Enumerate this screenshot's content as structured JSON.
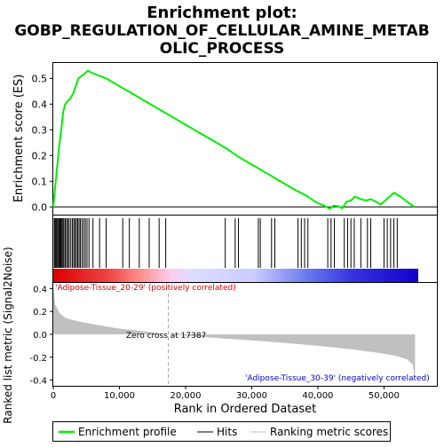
{
  "chart_data": {
    "type": "line",
    "title_lines": [
      "Enrichment plot:",
      "GOBP_REGULATION_OF_CELLULAR_AMINE_METAB",
      "OLIC_PROCESS"
    ],
    "top_panel": {
      "ylabel": "Enrichment score (ES)",
      "ylim": [
        -0.03,
        0.56
      ],
      "yticks": [
        0.0,
        0.1,
        0.2,
        0.3,
        0.4,
        0.5
      ],
      "ytick_labels": [
        "0.0",
        "0.1",
        "0.2",
        "0.3",
        "0.4",
        "0.5"
      ],
      "series": [
        {
          "name": "Enrichment profile",
          "color": "#00ee00",
          "x": [
            0,
            300,
            600,
            900,
            1200,
            1500,
            1800,
            2100,
            2500,
            3000,
            3400,
            3800,
            4300,
            4800,
            5200,
            6000,
            7000,
            8000,
            10000,
            12000,
            14000,
            16000,
            18000,
            20000,
            22000,
            24000,
            26000,
            28000,
            30000,
            31000,
            32000,
            33000,
            34000,
            35000,
            36000,
            37000,
            37800,
            38500,
            39000,
            40000,
            41000,
            41800,
            42300,
            43000,
            43700,
            44300,
            45000,
            45600,
            46500,
            47300,
            48000,
            48800,
            49500,
            50200,
            50800,
            51500,
            52500,
            53500,
            54600
          ],
          "y": [
            0.0,
            0.08,
            0.16,
            0.24,
            0.3,
            0.37,
            0.4,
            0.41,
            0.42,
            0.44,
            0.47,
            0.5,
            0.51,
            0.52,
            0.53,
            0.52,
            0.51,
            0.5,
            0.47,
            0.44,
            0.41,
            0.38,
            0.35,
            0.32,
            0.29,
            0.26,
            0.23,
            0.195,
            0.165,
            0.15,
            0.135,
            0.12,
            0.105,
            0.09,
            0.075,
            0.06,
            0.05,
            0.04,
            0.03,
            0.015,
            0.005,
            -0.008,
            0.005,
            0.003,
            -0.005,
            0.02,
            0.025,
            0.04,
            0.03,
            0.025,
            0.03,
            0.02,
            0.01,
            0.025,
            0.04,
            0.055,
            0.04,
            0.02,
            0.0
          ]
        }
      ]
    },
    "hits_panel": {
      "hit_positions": [
        150,
        280,
        420,
        560,
        700,
        860,
        1000,
        1150,
        1300,
        1450,
        1600,
        1800,
        2000,
        2200,
        2400,
        2650,
        2900,
        3100,
        3300,
        3500,
        3700,
        3900,
        4100,
        4350,
        4600,
        4850,
        5100,
        5400,
        6000,
        7000,
        8000,
        10500,
        11500,
        13000,
        14500,
        16000,
        17000,
        26000,
        27500,
        28000,
        31000,
        31300,
        33000,
        33500,
        37000,
        37500,
        38000,
        38500,
        41500,
        42000,
        42500,
        44000,
        44500,
        45000,
        45500,
        46500,
        47500,
        48000,
        50000,
        50500,
        51000,
        51500,
        52000
      ]
    },
    "bottom_panel": {
      "ylabel": "Ranked list metric (Signal2Noise)",
      "xlabel": "Rank in Ordered Dataset",
      "xlim": [
        0,
        58000
      ],
      "ylim": [
        -0.45,
        0.45
      ],
      "yticks": [
        -0.4,
        -0.2,
        0.0,
        0.2,
        0.4
      ],
      "ytick_labels": [
        "-0.4",
        "-0.2",
        "0.0",
        "0.2",
        "0.4"
      ],
      "xticks": [
        0,
        10000,
        20000,
        30000,
        40000,
        50000
      ],
      "xtick_labels": [
        "0",
        "10,000",
        "20,000",
        "30,000",
        "40,000",
        "50,000"
      ],
      "metric_curve": {
        "x": [
          0,
          300,
          1000,
          2000,
          4000,
          7000,
          10000,
          14000,
          17387,
          22000,
          28000,
          34000,
          40000,
          45000,
          49000,
          52000,
          53500,
          54300,
          54700
        ],
        "y": [
          0.42,
          0.26,
          0.18,
          0.14,
          0.11,
          0.08,
          0.05,
          0.025,
          0.0,
          -0.02,
          -0.045,
          -0.07,
          -0.1,
          -0.13,
          -0.16,
          -0.19,
          -0.22,
          -0.26,
          -0.38
        ]
      },
      "zero_cross_label": "Zero cross at 17387",
      "zero_cross_x": 17387,
      "positive_label": "'Adipose-Tissue_20-29' (positively correlated)",
      "negative_label": "'Adipose-Tissue_30-39' (negatively correlated)",
      "positive_label_color": "#dd0000",
      "negative_label_color": "#0000dd"
    },
    "dataset_size": 54700,
    "legend": [
      {
        "label": "Enrichment profile",
        "color": "#00ee00"
      },
      {
        "label": "Hits",
        "color": "#000000"
      },
      {
        "label": "Ranking metric scores",
        "color": "#c0c0c0"
      }
    ]
  }
}
